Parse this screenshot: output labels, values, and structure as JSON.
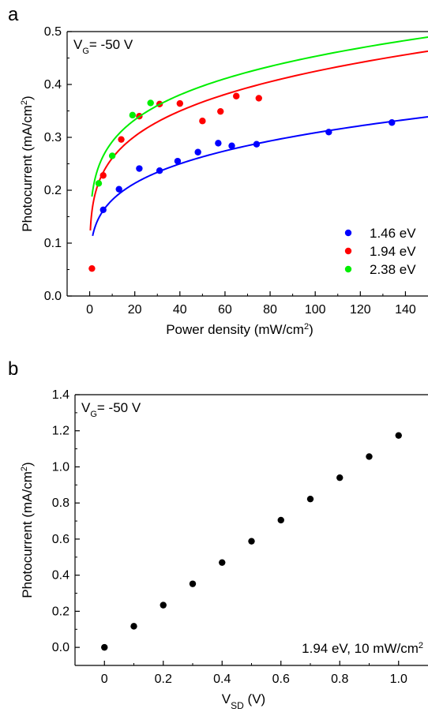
{
  "chart_data": [
    {
      "type": "scatter",
      "panel_label": "a",
      "annotation": {
        "main": "V",
        "sub": "G",
        "rest": "= -50 V"
      },
      "xlabel": "Power density (mW/cm",
      "xlabel_sup": "2",
      "xlabel_end": ")",
      "ylabel": "Photocurrent (mA/cm",
      "ylabel_sup": "2",
      "ylabel_end": ")",
      "xlim": [
        -10,
        150
      ],
      "ylim": [
        0,
        0.5
      ],
      "xticks": [
        0,
        20,
        40,
        60,
        80,
        100,
        120,
        140
      ],
      "yticks": [
        0.0,
        0.1,
        0.2,
        0.3,
        0.4,
        0.5
      ],
      "xtick_labels": [
        "0",
        "20",
        "40",
        "60",
        "80",
        "100",
        "120",
        "140"
      ],
      "ytick_labels": [
        "0.0",
        "0.1",
        "0.2",
        "0.3",
        "0.4",
        "0.5"
      ],
      "legend_position": "bottom-right",
      "series": [
        {
          "name": "1.46 eV",
          "color": "#0000ff",
          "x": [
            6,
            13,
            22,
            31,
            39,
            48,
            57,
            63,
            74,
            106,
            134
          ],
          "y": [
            0.163,
            0.202,
            0.241,
            0.237,
            0.255,
            0.272,
            0.289,
            0.284,
            0.287,
            0.31,
            0.328
          ],
          "fit": {
            "x_start": 1.3,
            "a": 0.107,
            "b": 0.23
          }
        },
        {
          "name": "1.94 eV",
          "color": "#ff0000",
          "x": [
            1,
            6,
            14,
            22,
            31,
            40,
            50,
            58,
            65,
            75
          ],
          "y": [
            0.052,
            0.228,
            0.296,
            0.34,
            0.363,
            0.364,
            0.331,
            0.349,
            0.378,
            0.374
          ],
          "fit": {
            "x_start": 0.3,
            "a": 0.16,
            "b": 0.212
          }
        },
        {
          "name": "2.38 eV",
          "color": "#00ee00",
          "x": [
            4,
            10,
            19,
            27
          ],
          "y": [
            0.213,
            0.265,
            0.342,
            0.365
          ],
          "fit": {
            "x_start": 1.0,
            "a": 0.188,
            "b": 0.191
          }
        }
      ]
    },
    {
      "type": "scatter",
      "panel_label": "b",
      "annotation": {
        "main": "V",
        "sub": "G",
        "rest": "= -50 V"
      },
      "note": "1.94 eV, 10 mW/cm",
      "note_sup": "2",
      "xlabel": "V",
      "xlabel_sub": "SD",
      "xlabel_end": " (V)",
      "ylabel": "Photocurrent (mA/cm",
      "ylabel_sup": "2",
      "ylabel_end": ")",
      "xlim": [
        -0.1,
        1.1
      ],
      "ylim": [
        -0.1,
        1.4
      ],
      "xticks": [
        0.0,
        0.2,
        0.4,
        0.6,
        0.8,
        1.0
      ],
      "yticks": [
        0.0,
        0.2,
        0.4,
        0.6,
        0.8,
        1.0,
        1.2,
        1.4
      ],
      "xtick_labels": [
        "0",
        "0.2",
        "0.4",
        "0.6",
        "0.8",
        "1.0"
      ],
      "ytick_labels": [
        "0.0",
        "0.2",
        "0.4",
        "0.6",
        "0.8",
        "1.0",
        "1.2",
        "1.4"
      ],
      "series": [
        {
          "color": "#000000",
          "x": [
            0.0,
            0.1,
            0.2,
            0.3,
            0.4,
            0.5,
            0.6,
            0.7,
            0.8,
            0.9,
            1.0
          ],
          "y": [
            0.0,
            0.117,
            0.234,
            0.352,
            0.47,
            0.588,
            0.705,
            0.822,
            0.94,
            1.057,
            1.174
          ]
        }
      ]
    }
  ]
}
